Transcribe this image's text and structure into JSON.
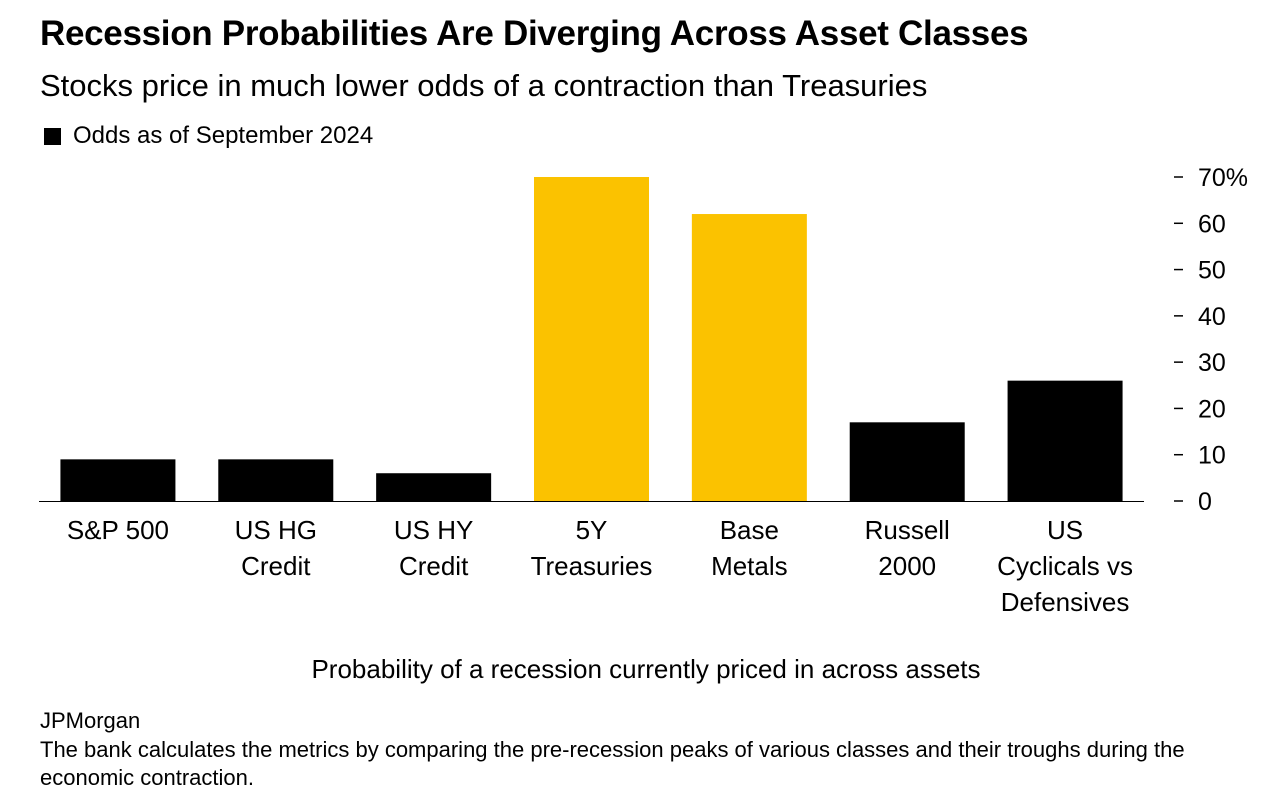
{
  "header": {
    "title": "Recession Probabilities Are Diverging Across Asset Classes",
    "subtitle": "Stocks price in much lower odds of a contraction than Treasuries"
  },
  "legend": {
    "label": "Odds as of September 2024",
    "color": "#000000"
  },
  "footer": {
    "source": "JPMorgan",
    "note": "The bank calculates the metrics by comparing the pre-recession peaks of various classes and their troughs during the economic contraction."
  },
  "chart_data": {
    "type": "bar",
    "title": "Recession Probabilities Are Diverging Across Asset Classes",
    "subtitle": "Stocks price in much lower odds of a contraction than Treasuries",
    "xlabel": "Probability of a recession currently priced in across assets",
    "ylabel": "",
    "categories": [
      "S&P 500",
      "US HG Credit",
      "US HY Credit",
      "5Y Treasuries",
      "Base Metals",
      "Russell 2000",
      "US Cyclicals vs Defensives"
    ],
    "category_lines": [
      [
        "S&P 500"
      ],
      [
        "US HG",
        "Credit"
      ],
      [
        "US HY",
        "Credit"
      ],
      [
        "5Y",
        "Treasuries"
      ],
      [
        "Base",
        "Metals"
      ],
      [
        "Russell",
        "2000"
      ],
      [
        "US",
        "Cyclicals vs",
        "Defensives"
      ]
    ],
    "series": [
      {
        "name": "Odds as of September 2024",
        "values": [
          9,
          9,
          6,
          70,
          62,
          17,
          26
        ]
      }
    ],
    "bar_colors": [
      "#000000",
      "#000000",
      "#000000",
      "#fbc200",
      "#fbc200",
      "#000000",
      "#000000"
    ],
    "ylim": [
      0,
      70
    ],
    "yticks": [
      0,
      10,
      20,
      30,
      40,
      50,
      60,
      70
    ],
    "ytick_labels": [
      "0",
      "10",
      "20",
      "30",
      "40",
      "50",
      "60",
      "70%"
    ],
    "y_axis_side": "right",
    "grid": false,
    "legend_position": "top-left"
  }
}
